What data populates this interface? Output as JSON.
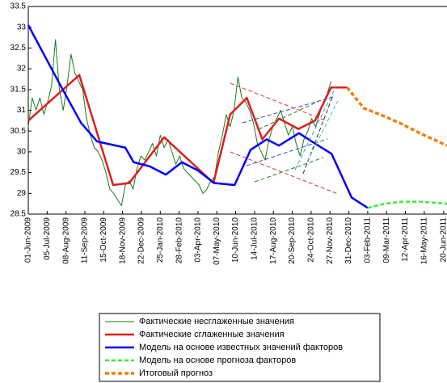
{
  "chart_data": {
    "type": "line",
    "xlim": [
      "2009-06-01",
      "2011-06-26"
    ],
    "ylim": [
      28.5,
      33.5
    ],
    "yticks": [
      28.5,
      29,
      29.5,
      30,
      30.5,
      31,
      31.5,
      32,
      32.5,
      33,
      33.5
    ],
    "xticks": [
      {
        "value": "2009-06-01",
        "label": "01-Jun-2009"
      },
      {
        "value": "2009-07-05",
        "label": "05-Jul-2009"
      },
      {
        "value": "2009-08-08",
        "label": "08-Aug-2009"
      },
      {
        "value": "2009-09-11",
        "label": "11-Sep-2009"
      },
      {
        "value": "2009-10-15",
        "label": "15-Oct-2009"
      },
      {
        "value": "2009-11-18",
        "label": "18-Nov-2009"
      },
      {
        "value": "2009-12-22",
        "label": "22-Dec-2009"
      },
      {
        "value": "2010-01-25",
        "label": "25-Jan-2010"
      },
      {
        "value": "2010-02-28",
        "label": "28-Feb-2010"
      },
      {
        "value": "2010-04-03",
        "label": "03-Apr-2010"
      },
      {
        "value": "2010-05-07",
        "label": "07-May-2010"
      },
      {
        "value": "2010-06-10",
        "label": "10-Jun-2010"
      },
      {
        "value": "2010-07-14",
        "label": "14-Jul-2010"
      },
      {
        "value": "2010-08-17",
        "label": "17-Aug-2010"
      },
      {
        "value": "2010-09-20",
        "label": "20-Sep-2010"
      },
      {
        "value": "2010-10-24",
        "label": "24-Oct-2010"
      },
      {
        "value": "2010-11-27",
        "label": "27-Nov-2010"
      },
      {
        "value": "2010-12-31",
        "label": "31-Dec-2010"
      },
      {
        "value": "2011-02-03",
        "label": "03-Feb-2011"
      },
      {
        "value": "2011-03-09",
        "label": "09-Mar-2011"
      },
      {
        "value": "2011-04-12",
        "label": "12-Apr-2011"
      },
      {
        "value": "2011-05-16",
        "label": "16-May-2011"
      },
      {
        "value": "2011-06-20",
        "label": "20-Jun-2011"
      }
    ],
    "legend": "bottom",
    "series": [
      {
        "name": "Фактические несглаженные значения",
        "color": "#1a7a1a",
        "linestyle": "solid",
        "width": 1,
        "x": [
          "2009-06-01",
          "2009-06-08",
          "2009-06-15",
          "2009-06-22",
          "2009-06-29",
          "2009-07-06",
          "2009-07-13",
          "2009-07-20",
          "2009-07-27",
          "2009-08-03",
          "2009-08-10",
          "2009-08-17",
          "2009-08-24",
          "2009-08-31",
          "2009-09-07",
          "2009-09-14",
          "2009-09-21",
          "2009-09-28",
          "2009-10-05",
          "2009-10-12",
          "2009-10-19",
          "2009-10-26",
          "2009-11-02",
          "2009-11-09",
          "2009-11-16",
          "2009-11-23",
          "2009-11-30",
          "2009-12-07",
          "2009-12-14",
          "2009-12-21",
          "2009-12-28",
          "2010-01-04",
          "2010-01-11",
          "2010-01-18",
          "2010-01-25",
          "2010-02-01",
          "2010-02-08",
          "2010-02-15",
          "2010-02-22",
          "2010-03-01",
          "2010-03-08",
          "2010-03-15",
          "2010-03-22",
          "2010-03-29",
          "2010-04-05",
          "2010-04-12",
          "2010-04-19",
          "2010-04-26",
          "2010-05-03",
          "2010-05-10",
          "2010-05-17",
          "2010-05-24",
          "2010-05-31",
          "2010-06-07",
          "2010-06-14",
          "2010-06-21",
          "2010-06-28",
          "2010-07-05",
          "2010-07-12",
          "2010-07-19",
          "2010-07-26",
          "2010-08-02",
          "2010-08-09",
          "2010-08-16",
          "2010-08-23",
          "2010-08-30",
          "2010-09-06",
          "2010-09-13",
          "2010-09-20",
          "2010-09-27",
          "2010-10-04",
          "2010-10-11",
          "2010-10-18",
          "2010-10-25",
          "2010-11-01",
          "2010-11-08",
          "2010-11-15",
          "2010-11-22",
          "2010-11-29"
        ],
        "values": [
          30.6,
          31.3,
          31.0,
          31.3,
          30.9,
          31.2,
          31.6,
          32.7,
          31.5,
          31.0,
          31.6,
          32.35,
          31.9,
          31.7,
          31.5,
          30.8,
          30.4,
          30.1,
          30.0,
          29.8,
          29.5,
          29.1,
          29.0,
          28.85,
          28.7,
          29.2,
          29.3,
          29.1,
          29.6,
          29.9,
          29.8,
          30.0,
          30.2,
          29.9,
          30.4,
          30.1,
          30.3,
          30.0,
          29.7,
          29.9,
          29.6,
          29.5,
          29.4,
          29.3,
          29.2,
          29.0,
          29.1,
          29.3,
          29.4,
          30.0,
          30.4,
          30.9,
          30.6,
          31.0,
          31.8,
          31.3,
          31.2,
          31.0,
          30.7,
          30.2,
          30.0,
          29.8,
          30.3,
          30.6,
          30.8,
          31.0,
          30.7,
          30.4,
          30.6,
          30.2,
          29.9,
          30.3,
          30.5,
          30.8,
          30.6,
          30.9,
          31.2,
          31.4,
          31.7
        ]
      },
      {
        "name": "Фактические сглаженные значения",
        "color": "#e01e1e",
        "linestyle": "solid",
        "width": 2.5,
        "x": [
          "2009-06-01",
          "2009-09-01",
          "2009-11-01",
          "2009-11-30",
          "2010-02-01",
          "2010-05-01",
          "2010-05-31",
          "2010-06-30",
          "2010-07-28",
          "2010-08-27",
          "2010-10-01",
          "2010-10-31",
          "2010-11-29",
          "2010-12-28"
        ],
        "values": [
          30.75,
          31.85,
          29.2,
          29.25,
          30.35,
          29.25,
          30.9,
          31.3,
          30.3,
          30.8,
          30.55,
          30.75,
          31.55,
          31.55
        ]
      },
      {
        "name": "Модель на основе известных значений факторов",
        "color": "#0000ff",
        "linestyle": "solid",
        "width": 2.5,
        "x": [
          "2009-06-01",
          "2009-07-29",
          "2009-09-04",
          "2009-10-03",
          "2009-11-23",
          "2009-12-08",
          "2010-01-06",
          "2010-02-04",
          "2010-03-05",
          "2010-04-03",
          "2010-05-02",
          "2010-06-08",
          "2010-07-07",
          "2010-08-05",
          "2010-08-27",
          "2010-10-02",
          "2010-10-31",
          "2010-11-30",
          "2011-01-05",
          "2011-02-03"
        ],
        "values": [
          33.05,
          31.6,
          30.7,
          30.25,
          30.1,
          29.75,
          29.65,
          29.45,
          29.75,
          29.55,
          29.25,
          29.2,
          30.05,
          30.3,
          30.15,
          30.45,
          30.2,
          29.95,
          28.9,
          28.65
        ]
      },
      {
        "name": "Модель на основе прогноза факторов",
        "color": "#33ee33",
        "linestyle": "dashed",
        "width": 2.5,
        "x": [
          "2011-02-03",
          "2011-03-05",
          "2011-04-07",
          "2011-05-10",
          "2011-06-26"
        ],
        "values": [
          28.65,
          28.75,
          28.8,
          28.8,
          28.75
        ]
      },
      {
        "name": "Итоговый прогноз",
        "color": "#f08010",
        "linestyle": "dashed",
        "width": 3.5,
        "x": [
          "2010-12-28",
          "2011-01-27",
          "2011-02-25",
          "2011-04-01",
          "2011-05-08",
          "2011-06-26"
        ],
        "values": [
          31.55,
          31.05,
          30.9,
          30.7,
          30.45,
          30.15
        ]
      }
    ]
  }
}
